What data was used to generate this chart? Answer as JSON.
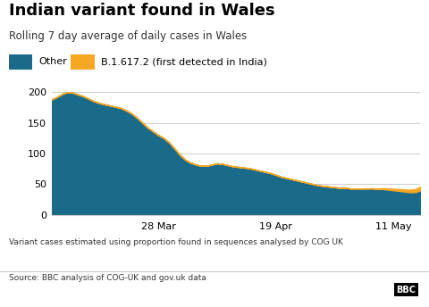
{
  "title": "Indian variant found in Wales",
  "subtitle": "Rolling 7 day average of daily cases in Wales",
  "legend_other": "Other",
  "legend_indian": "B.1.617.2 (first detected in India)",
  "color_other": "#1a6b8a",
  "color_indian": "#f5a623",
  "footnote1": "Variant cases estimated using proportion found in sequences analysed by COG UK",
  "footnote2": "Source: BBC analysis of COG-UK and gov.uk data",
  "x_tick_labels": [
    "28 Mar",
    "19 Apr",
    "11 May"
  ],
  "ylim": [
    0,
    210
  ],
  "yticks": [
    0,
    50,
    100,
    150,
    200
  ],
  "days": [
    0,
    1,
    2,
    3,
    4,
    5,
    6,
    7,
    8,
    9,
    10,
    11,
    12,
    13,
    14,
    15,
    16,
    17,
    18,
    19,
    20,
    21,
    22,
    23,
    24,
    25,
    26,
    27,
    28,
    29,
    30,
    31,
    32,
    33,
    34,
    35,
    36,
    37,
    38,
    39,
    40,
    41,
    42,
    43,
    44,
    45,
    46,
    47,
    48,
    49,
    50,
    51,
    52,
    53,
    54,
    55,
    56,
    57,
    58,
    59,
    60,
    61,
    62,
    63,
    64,
    65,
    66,
    67,
    68,
    69
  ],
  "other": [
    188,
    192,
    197,
    200,
    199,
    196,
    193,
    189,
    185,
    182,
    180,
    178,
    176,
    174,
    170,
    165,
    158,
    150,
    142,
    136,
    130,
    125,
    118,
    108,
    98,
    90,
    85,
    82,
    80,
    80,
    82,
    84,
    83,
    81,
    79,
    78,
    77,
    76,
    74,
    72,
    70,
    68,
    65,
    62,
    60,
    58,
    56,
    54,
    52,
    50,
    48,
    47,
    46,
    45,
    44,
    44,
    43,
    43,
    43,
    43,
    43,
    42,
    42,
    41,
    40,
    39,
    38,
    37,
    37,
    40
  ],
  "indian": [
    0,
    0,
    0,
    0,
    0,
    0,
    0,
    0,
    0,
    0,
    0,
    0,
    0,
    0,
    0,
    0,
    0,
    0,
    0,
    0,
    0,
    0,
    0,
    0,
    0,
    0,
    0,
    0,
    0,
    0,
    0,
    0,
    0,
    0,
    0,
    0,
    0,
    0,
    0,
    0,
    0,
    0,
    0,
    0,
    0,
    0,
    0,
    0,
    0,
    0,
    0,
    0,
    0,
    0,
    0,
    0,
    0,
    0,
    0,
    0.2,
    0.5,
    1,
    1.5,
    2,
    2.5,
    3,
    3.5,
    4,
    5,
    6
  ],
  "x_tick_positions": [
    20,
    42,
    64
  ]
}
